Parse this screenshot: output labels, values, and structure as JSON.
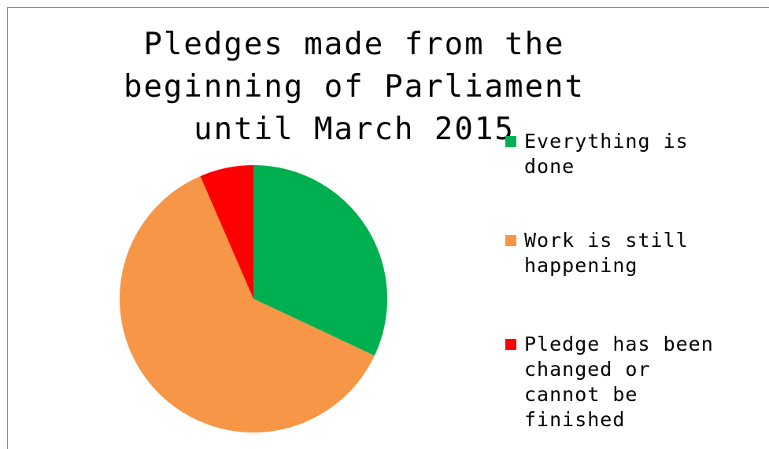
{
  "chart_data": {
    "type": "pie",
    "title": "Pledges made from the beginning of Parliament until March 2015",
    "legend_position": "right",
    "slices": [
      {
        "label": "Everything is done",
        "value": 32,
        "color": "#00b050"
      },
      {
        "label": "Work is still happening",
        "value": 61.5,
        "color": "#f79646"
      },
      {
        "label": "Pledge has been changed or cannot be finished",
        "value": 6.5,
        "color": "#ff0000"
      }
    ]
  }
}
